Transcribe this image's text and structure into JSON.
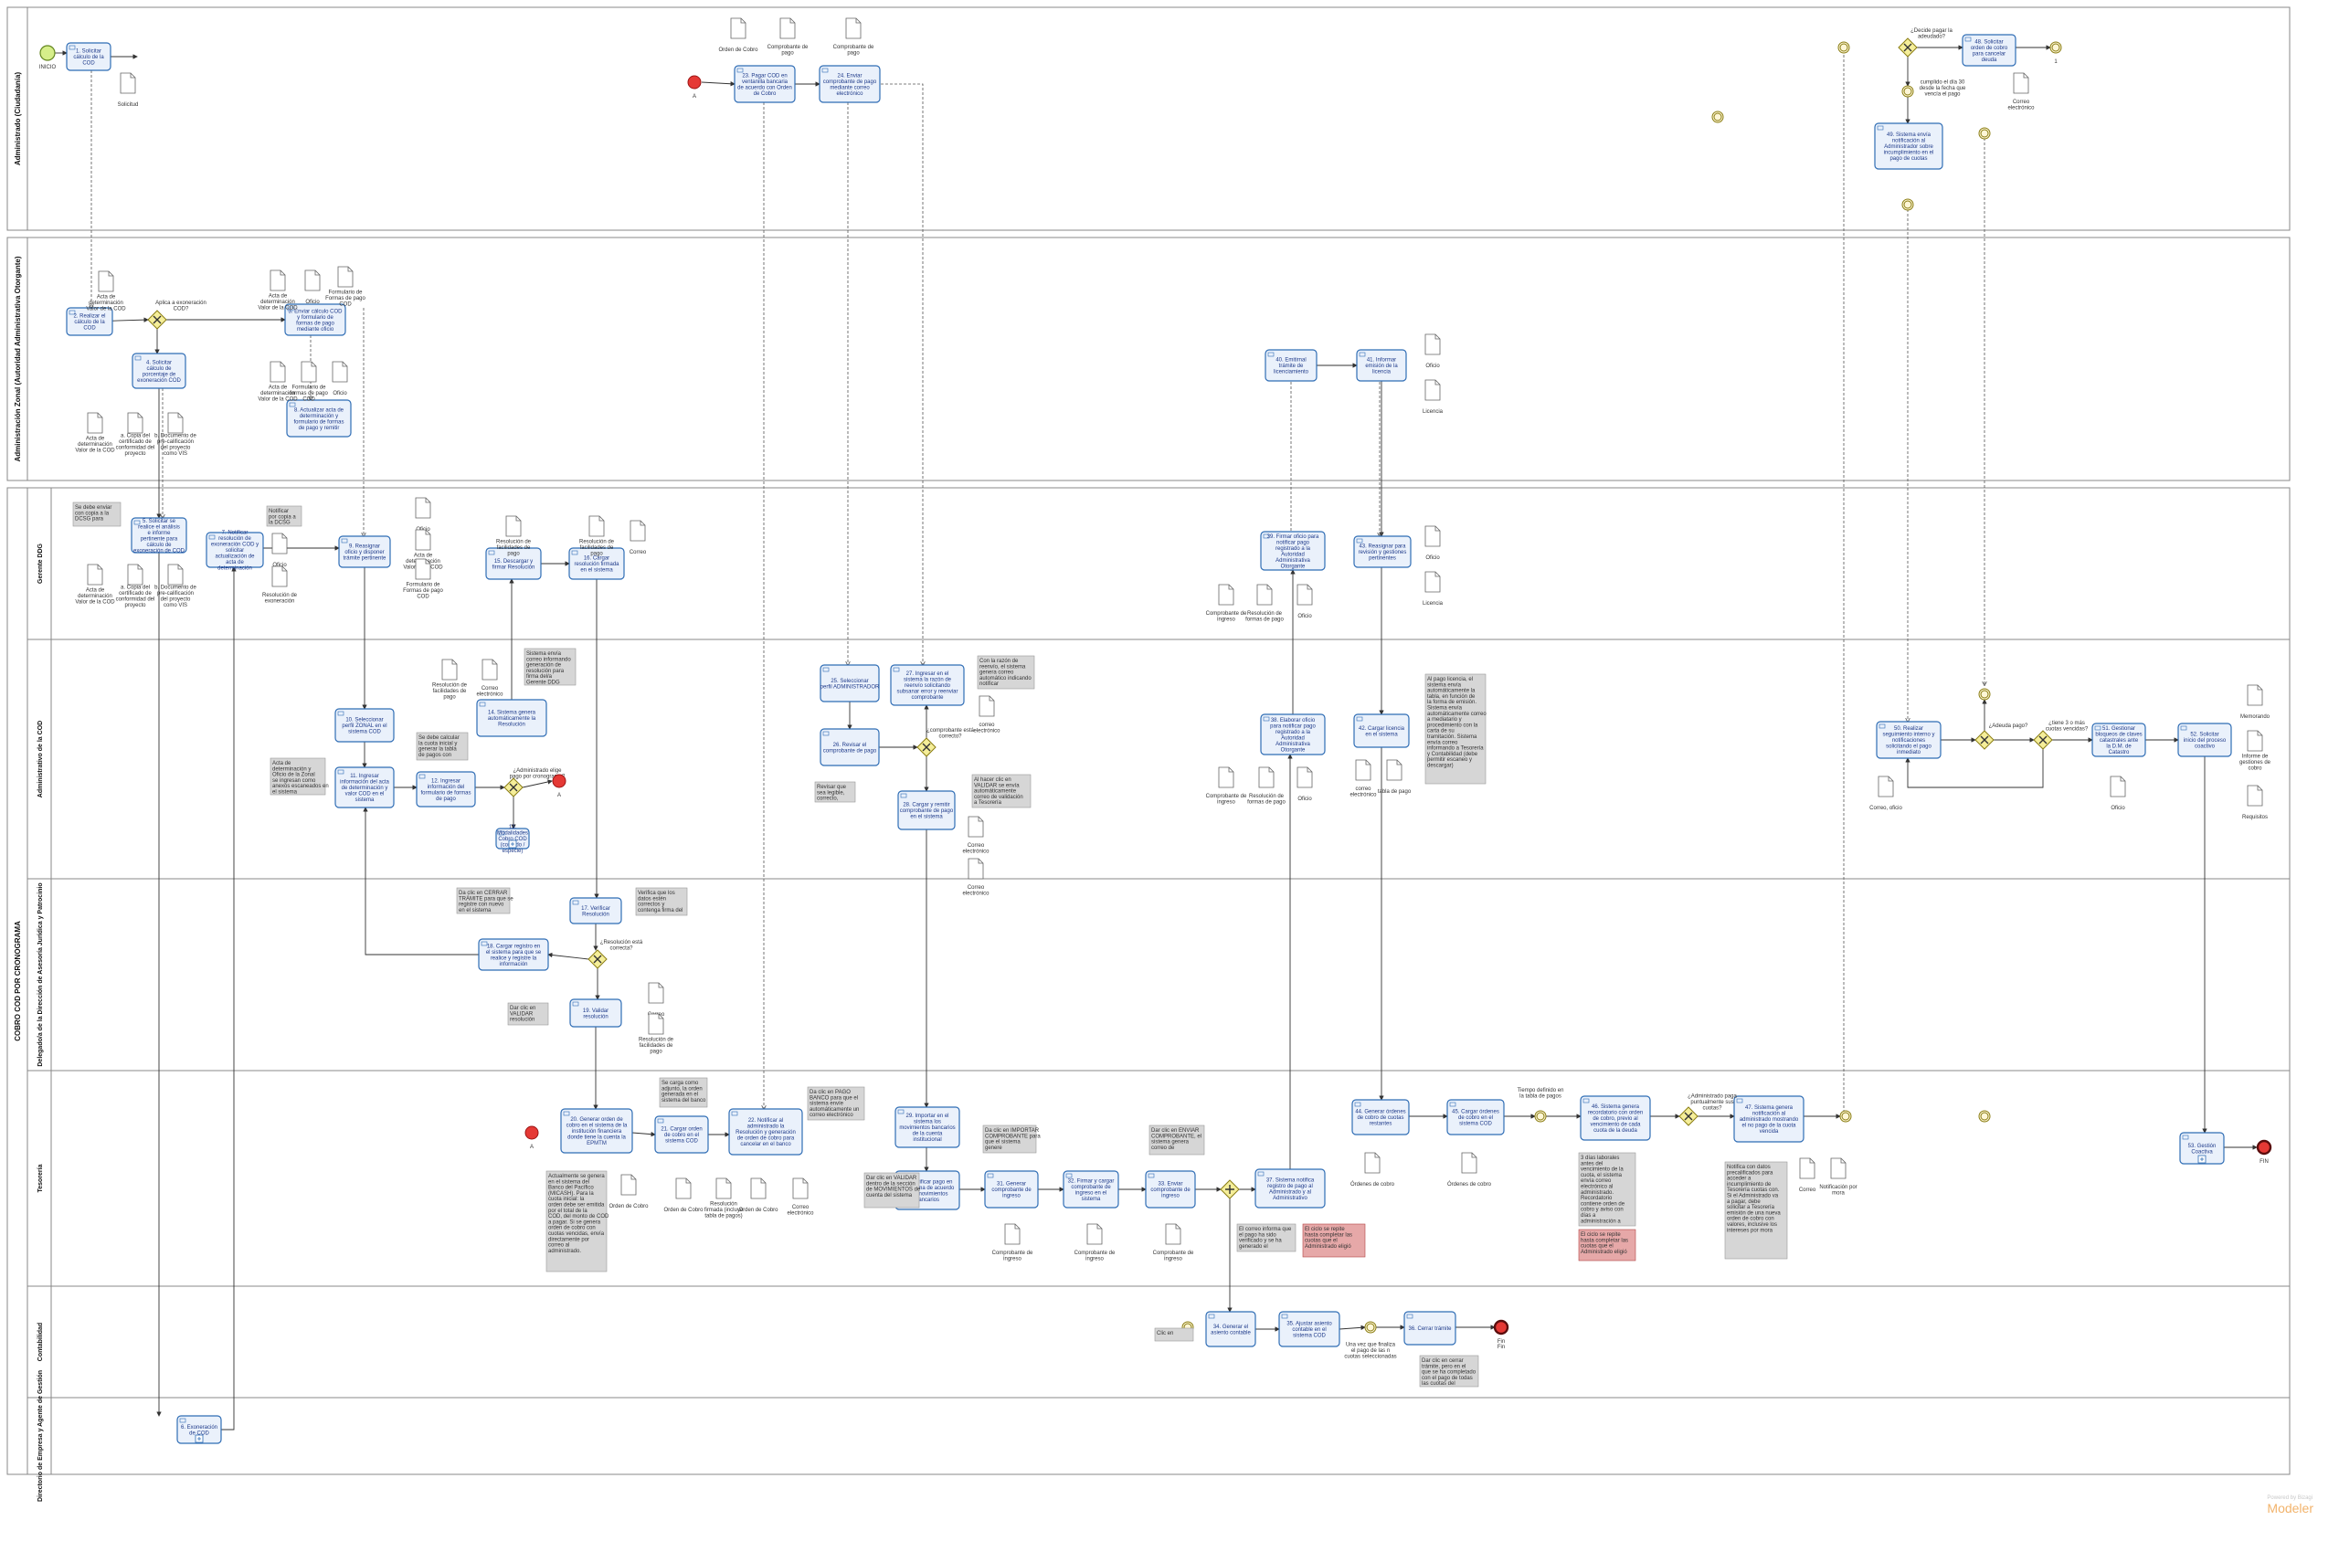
{
  "pools": [
    {
      "id": "p1",
      "title": "Administrado (Ciudadanía)"
    },
    {
      "id": "p2",
      "title": "Administración Zonal (Autoridad Administrativa Otorgante)"
    },
    {
      "id": "p3",
      "title": "COBRO COD POR CRONOGRAMA"
    }
  ],
  "lanes": [
    {
      "id": "l1",
      "title": "Gerente DDG"
    },
    {
      "id": "l2",
      "title": "Administrativo de la COD"
    },
    {
      "id": "l3",
      "title": "Delegado/a de la Dirección de Asesoría Jurídica y Patrocinio"
    },
    {
      "id": "l4",
      "title": "Tesorería"
    },
    {
      "id": "l5",
      "title": "Contabilidad"
    },
    {
      "id": "l6",
      "title": "Directorio de Empresa y Agente de Gestión"
    }
  ],
  "tasks": [
    {
      "id": "t1",
      "label": "1. Solicitar cálculo de la COD"
    },
    {
      "id": "t2",
      "label": "2. Realizar el cálculo de la COD"
    },
    {
      "id": "t3",
      "label": "3. Enviar cálculo COD y formulario de formas de pago mediante oficio"
    },
    {
      "id": "t4",
      "label": "4. Solicitar cálculo de porcentaje de exoneración COD"
    },
    {
      "id": "t5",
      "label": "5. Solicitar se realice el análisis e informe pertinente para cálculo de exoneración de COD"
    },
    {
      "id": "t6",
      "label": "6. Exoneración de COD"
    },
    {
      "id": "t7",
      "label": "7. Notificar resolución de exoneración COD y solicitar actualización de acta de determinación"
    },
    {
      "id": "t8",
      "label": "8. Actualizar acta de determinación y formulario de formas de pago y remitir"
    },
    {
      "id": "t9",
      "label": "9. Reasignar oficio y disponer trámite pertinente"
    },
    {
      "id": "t10",
      "label": "10. Seleccionar perfil ZONAL en el sistema COD"
    },
    {
      "id": "t11",
      "label": "11. Ingresar información del acta de determinación y valor COD en el sistema"
    },
    {
      "id": "t12",
      "label": "12. Ingresar información del formulario de formas de pago"
    },
    {
      "id": "t13",
      "label": "13. Modalidades Cobro COD (contado / especie)"
    },
    {
      "id": "t14",
      "label": "14. Sistema genera automáticamente la Resolución"
    },
    {
      "id": "t15",
      "label": "15. Descargar y firmar Resolución"
    },
    {
      "id": "t16",
      "label": "16. Cargar resolución firmada en el sistema"
    },
    {
      "id": "t17",
      "label": "17. Verificar Resolución"
    },
    {
      "id": "t18",
      "label": "18. Cargar registro en el sistema para que se realice y registre la información"
    },
    {
      "id": "t19",
      "label": "19. Validar resolución"
    },
    {
      "id": "t20",
      "label": "20. Generar orden de cobro en el sistema de la institución financiera donde tiene la cuenta la EPMTM"
    },
    {
      "id": "t21",
      "label": "21. Cargar orden de cobro en el sistema COD"
    },
    {
      "id": "t22",
      "label": "22. Notificar al administrado la Resolución y generación de orden de cobro para cancelar en el banco"
    },
    {
      "id": "t23",
      "label": "23. Pagar COD en ventanilla bancaria de acuerdo con Orden de Cobro"
    },
    {
      "id": "t24",
      "label": "24. Enviar comprobante de pago mediante correo electrónico"
    },
    {
      "id": "t25",
      "label": "25. Seleccionar perfil ADMINISTRADOR"
    },
    {
      "id": "t26",
      "label": "26. Revisar el comprobante de pago"
    },
    {
      "id": "t27",
      "label": "27. Ingresar en el sistema la razón de reenvío solicitando subsanar error y reenviar comprobante"
    },
    {
      "id": "t28",
      "label": "28. Cargar y remitir comprobante de pago en el sistema"
    },
    {
      "id": "t29",
      "label": "29. Importar en el sistema los movimientos bancarios de la cuenta institucional"
    },
    {
      "id": "t30",
      "label": "30. Verificar pago en el sistema de acuerdo con movimientos bancarios"
    },
    {
      "id": "t31",
      "label": "31. Generar comprobante de ingreso"
    },
    {
      "id": "t32",
      "label": "32. Firmar y cargar comprobante de ingreso en el sistema"
    },
    {
      "id": "t33",
      "label": "33. Enviar comprobante de ingreso"
    },
    {
      "id": "t34",
      "label": "34. Generar el asiento contable"
    },
    {
      "id": "t35",
      "label": "35. Ajustar asiento contable en el sistema COD"
    },
    {
      "id": "t36",
      "label": "36. Cerrar trámite"
    },
    {
      "id": "t37",
      "label": "37. Sistema notifica registro de pago al Administrado y al Administrativo"
    },
    {
      "id": "t38",
      "label": "38. Elaborar oficio para notificar pago registrado a la Autoridad Administrativa Otorgante"
    },
    {
      "id": "t39",
      "label": "39. Firmar oficio para notificar pago registrado a la Autoridad Administrativa Otorgante"
    },
    {
      "id": "t40",
      "label": "40. Emitirnal trámite de licenciamiento"
    },
    {
      "id": "t41",
      "label": "41. Informar emisión de la licencia"
    },
    {
      "id": "t42",
      "label": "42. Cargar licencia en el sistema"
    },
    {
      "id": "t43",
      "label": "43. Reasignar para revisión y gestiones pertinentes"
    },
    {
      "id": "t44",
      "label": "44. Generar órdenes de cobro de cuotas restantes"
    },
    {
      "id": "t45",
      "label": "45. Cargar órdenes de cobro en el sistema COD"
    },
    {
      "id": "t46",
      "label": "46. Sistema genera recordatorio con orden de cobro, previo al vencimiento de cada cuota de la deuda"
    },
    {
      "id": "t47",
      "label": "47. Sistema genera notificación al administrado mostrando el no pago de la cuota vencida"
    },
    {
      "id": "t48",
      "label": "48. Solicitar orden de cobro para cancelar deuda"
    },
    {
      "id": "t49",
      "label": "49. Sistema envía notificación al Administrador sobre incumplimiento en el pago de cuotas"
    },
    {
      "id": "t50",
      "label": "50. Realizar seguimiento interno y notificaciones solicitando el pago inmediato"
    },
    {
      "id": "t51",
      "label": "51. Gestionar bloqueos de claves catastrales ante la D.M. de Catastro"
    },
    {
      "id": "t52",
      "label": "52. Solicitar inicio del proceso coactivo"
    },
    {
      "id": "t53",
      "label": "53. Gestión Coactiva"
    }
  ],
  "events": [
    {
      "id": "e_start",
      "label": "INICIO"
    },
    {
      "id": "e_fin",
      "label": "FIN"
    },
    {
      "id": "e_a1",
      "label": "A"
    },
    {
      "id": "e_a2",
      "label": "A"
    },
    {
      "id": "e_a3",
      "label": "A"
    },
    {
      "id": "e_1",
      "label": "1"
    },
    {
      "id": "e_fin2",
      "label": "Fin"
    }
  ],
  "gateways": [
    {
      "id": "g1",
      "label": "Aplica a exoneración COD?",
      "yes": "SI",
      "no": "NO"
    },
    {
      "id": "g2",
      "label": "¿Administrado elige pago por cronograma?",
      "yes": "SI",
      "no": "NO"
    },
    {
      "id": "g3",
      "label": "¿Resolución está correcta?",
      "yes": "SI",
      "no": "NO"
    },
    {
      "id": "g4",
      "label": "¿comprobante está correcto?",
      "yes": "SI",
      "no": "NO"
    },
    {
      "id": "g5",
      "label": "",
      "yes": "",
      "no": ""
    },
    {
      "id": "g6",
      "label": "¿Administrado paga puntualmente sus cuotas?",
      "yes": "SI",
      "no": "NO"
    },
    {
      "id": "g7",
      "label": "¿Decide pagar la adeudado?",
      "yes": "SI",
      "no": "NO"
    },
    {
      "id": "g8",
      "label": "¿Adeuda pago?",
      "yes": "SI",
      "no": "NO"
    },
    {
      "id": "g9",
      "label": "¿tiene 3 o más cuotas vencidas?",
      "yes": "SI",
      "no": "NO"
    }
  ],
  "documents": [
    {
      "id": "d1",
      "label": "Solicitud"
    },
    {
      "id": "d2",
      "label": "Acta de determinación Valor de la COD"
    },
    {
      "id": "d3",
      "label": "Acta de determinación Valor de la COD"
    },
    {
      "id": "d4",
      "label": "Oficio"
    },
    {
      "id": "d5",
      "label": "Formulario de Formas de pago COD"
    },
    {
      "id": "d6",
      "label": "Acta de determinación Valor de la COD"
    },
    {
      "id": "d7",
      "label": "Formulario de formas de pago COD"
    },
    {
      "id": "d8",
      "label": "Oficio"
    },
    {
      "id": "d9",
      "label": "Acta de determinación Valor de la COD"
    },
    {
      "id": "d10",
      "label": "a. Copia del certificado de conformidad del proyecto"
    },
    {
      "id": "d11",
      "label": "b. Documento de pre-calificación del proyecto como VIS"
    },
    {
      "id": "d12",
      "label": "Orden de Cobro"
    },
    {
      "id": "d13",
      "label": "Comprobante de pago"
    },
    {
      "id": "d14",
      "label": "Comprobante de pago"
    },
    {
      "id": "d15",
      "label": "Correo electrónico"
    },
    {
      "id": "d16",
      "label": "Oficio"
    },
    {
      "id": "d17",
      "label": "Licencia"
    },
    {
      "id": "d18",
      "label": "Resolución de facilidades de pago"
    },
    {
      "id": "d19",
      "label": "Resolución de facilidades de pago"
    },
    {
      "id": "d20",
      "label": "Correo"
    },
    {
      "id": "d21",
      "label": "Oficio"
    },
    {
      "id": "d22",
      "label": "Acta de determinación Valor de la COD"
    },
    {
      "id": "d23",
      "label": "Formulario de Formas de pago COD"
    },
    {
      "id": "d24",
      "label": "Oficio"
    },
    {
      "id": "d25",
      "label": "Resolución de exoneración"
    },
    {
      "id": "d26",
      "label": "Comprobante de ingreso"
    },
    {
      "id": "d27",
      "label": "Resolución de formas de pago"
    },
    {
      "id": "d28",
      "label": "Oficio"
    },
    {
      "id": "d29",
      "label": "Oficio"
    },
    {
      "id": "d30",
      "label": "Licencia"
    },
    {
      "id": "d31",
      "label": "Resolución de facilidades de pago"
    },
    {
      "id": "d32",
      "label": "Correo electrónico"
    },
    {
      "id": "d33",
      "label": "correo electrónico"
    },
    {
      "id": "d34",
      "label": "Correo electrónico"
    },
    {
      "id": "d35",
      "label": "Comprobante de ingreso"
    },
    {
      "id": "d36",
      "label": "Resolución de formas de pago"
    },
    {
      "id": "d37",
      "label": "Oficio"
    },
    {
      "id": "d38",
      "label": "correo electrónico"
    },
    {
      "id": "d39",
      "label": "tabla de pago"
    },
    {
      "id": "d40",
      "label": "Correo, oficio"
    },
    {
      "id": "d41",
      "label": "Oficio"
    },
    {
      "id": "d42",
      "label": "Memorando"
    },
    {
      "id": "d43",
      "label": "Informe de gestiones de cobro"
    },
    {
      "id": "d44",
      "label": "Requisitos"
    },
    {
      "id": "d45",
      "label": "Correo"
    },
    {
      "id": "d46",
      "label": "Resolución de facilidades de pago"
    },
    {
      "id": "d47",
      "label": "Orden de Cobro"
    },
    {
      "id": "d48",
      "label": "Orden de Cobro"
    },
    {
      "id": "d49",
      "label": "Resolución firmada (incluye tabla de pagos)"
    },
    {
      "id": "d50",
      "label": "Orden de Cobro"
    },
    {
      "id": "d51",
      "label": "Correo electrónico"
    },
    {
      "id": "d52",
      "label": "Comprobante de ingreso"
    },
    {
      "id": "d53",
      "label": "Comprobante de ingreso"
    },
    {
      "id": "d54",
      "label": "Comprobante de ingreso"
    },
    {
      "id": "d55",
      "label": "Órdenes de cobro"
    },
    {
      "id": "d56",
      "label": "Órdenes de cobro"
    },
    {
      "id": "d57",
      "label": "Correo"
    },
    {
      "id": "d58",
      "label": "Notificación por mora"
    },
    {
      "id": "d59",
      "label": "Acta de determinación Valor de la COD"
    },
    {
      "id": "d60",
      "label": "a. Copia del certificado de conformidad del proyecto"
    },
    {
      "id": "d61",
      "label": "b. Documento de pre-calificación del proyecto como VIS"
    },
    {
      "id": "d62",
      "label": "Correo electrónico"
    }
  ],
  "notes": [
    {
      "id": "n1",
      "text": "Se debe enviar con copia a la DCSG para conocimiento"
    },
    {
      "id": "n2",
      "text": "Notificar por copia a la DCSG"
    },
    {
      "id": "n3",
      "text": "Acta de determinación y Oficio de la Zonal se ingresan como anexos escaneados en el sistema"
    },
    {
      "id": "n4",
      "text": "Se debe calcular la cuota inicial y generar la tabla de pagos con fechas"
    },
    {
      "id": "n5",
      "text": "Sistema envía correo informando generación de resolución para firma del/a Gerente DDG"
    },
    {
      "id": "n6",
      "text": "Da clic en CERRAR TRÁMITE para que se registre con nuevo en el sistema"
    },
    {
      "id": "n7",
      "text": "Verifica que los datos estén correctos y contenga firma del Gerente DDG"
    },
    {
      "id": "n8",
      "text": "Dar clic en VALIDAR resolución"
    },
    {
      "id": "n9",
      "text": "Se carga como adjunto, la orden generada en el sistema del banco"
    },
    {
      "id": "n10",
      "text": "Da clic en PAGO BANCO para que el sistema envíe automáticamente un correo electrónico al Administrado"
    },
    {
      "id": "n11",
      "text": "Revisar que sea legible, correcto, pertinente"
    },
    {
      "id": "n12",
      "text": "Con la razón de reenvío, el sistema genera correo automático indicando notificar"
    },
    {
      "id": "n13",
      "text": "Al hacer clic en VALIDAR se envía automáticamente correo de validación a Tesorería"
    },
    {
      "id": "n14",
      "text": "Da clic en IMPORTAR COMPROBANTE para que el sistema genere automáticamente"
    },
    {
      "id": "n15",
      "text": "Dar clic en VALIDAR dentro de la sección de MOVIMIENTOS de cuenta del sistema"
    },
    {
      "id": "n16",
      "text": "Dar clic en ENVIAR COMPROBANTE, el sistema genera correo de notificación automático"
    },
    {
      "id": "n17",
      "text": "Actualmente se genera en el sistema del Banco del Pacífico (MICASH). Para la cuota inicial: la orden debe ser emitida por el total de la COD, del monto de COD a pagar. Si se genera orden de cobro con cuotas vencidas, envía directamente por correo al administrado."
    },
    {
      "id": "n18",
      "text": "El correo informa que el pago ha sido verificado y se ha generado el comprobante de ingreso"
    },
    {
      "id": "n19",
      "text": "El ciclo se repite hasta completar las cuotas que el Administrado eligió"
    },
    {
      "id": "n20",
      "text": "Clic en INGRESO"
    },
    {
      "id": "n21",
      "text": "Dar clic en cerrar trámite, pero en el que se ha completado con el pago de todas las cuotas del cronograma"
    },
    {
      "id": "n22",
      "text": "Al pago licencia, el sistema envía automáticamente la tabla, en función de la forma de emisión. Sistema envía automáticamente correo a mediatario y procedimiento con la carta de su tramitación. Sistema envía correo informando a Tesorería y Contabilidad (debe permitir escaneo y descargar)"
    },
    {
      "id": "n23",
      "text": "3 días laborales antes del vencimiento de la cuota, el sistema envía correo electrónico al administrado. Recordatorio contiene orden de cobro y aviso con días a administración a Tesorería"
    },
    {
      "id": "n24",
      "text": "El ciclo se repite hasta completar las cuotas que el Administrado eligió"
    },
    {
      "id": "n25",
      "text": "Notifica con datos precalificados para acceder a incumplimiento de Tesorería cuotas con. Si el Administrado va a pagar, debe solicitar a Tesorería emisión de una nueva orden de cobro con valores, inclusive los intereses por mora"
    }
  ],
  "annotations": [
    {
      "id": "a1",
      "text": "Tiempo definido en la tabla de pagos"
    },
    {
      "id": "a2",
      "text": "cumplido el día 30 desde la fecha que vencía el pago"
    },
    {
      "id": "a3",
      "text": "Una vez que finaliza el pago de las n cuotas seleccionadas"
    },
    {
      "id": "a4",
      "text": "Fin"
    }
  ],
  "watermark": {
    "brand": "Modeler",
    "small": "Powered by Bizagi"
  }
}
